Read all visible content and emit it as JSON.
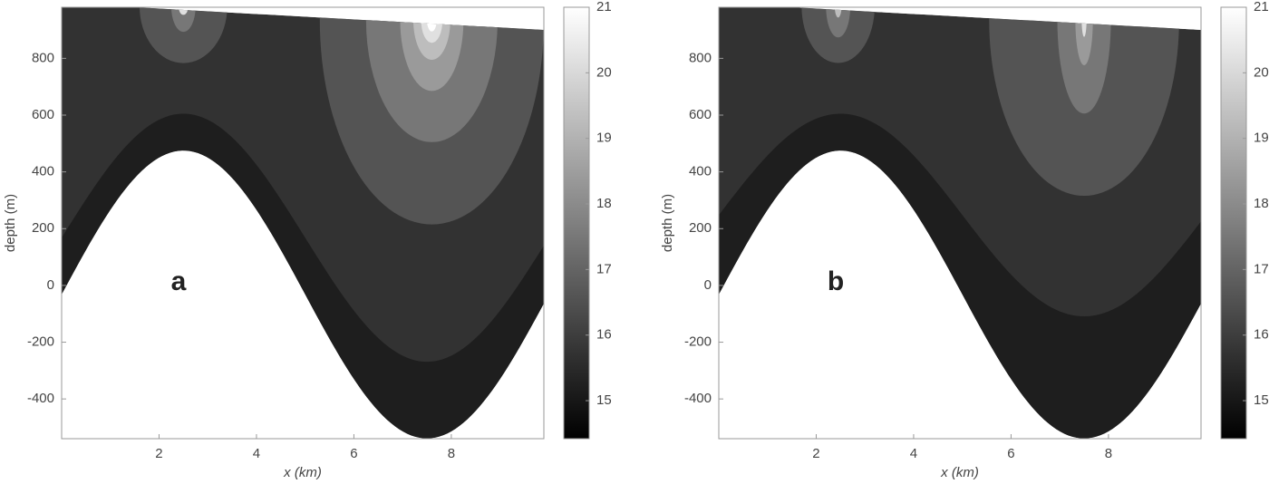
{
  "chart_data": [
    {
      "type": "contour",
      "title": "a",
      "xlabel": "x (km)",
      "ylabel": "depth (m)",
      "xlim": [
        0,
        9.9
      ],
      "ylim": [
        -540,
        980
      ],
      "xticks": [
        2,
        4,
        6,
        8
      ],
      "yticks": [
        -400,
        -200,
        0,
        200,
        400,
        600,
        800
      ],
      "colormap": "gray",
      "clim": [
        14.42,
        21
      ],
      "cticks": [
        15,
        16,
        17,
        18,
        19,
        20,
        21
      ],
      "levels": [
        15.2,
        15.7,
        16.6,
        17.5,
        18.4,
        19.3,
        20.2,
        21
      ]
    },
    {
      "type": "contour",
      "title": "b",
      "xlabel": "x (km)",
      "ylabel": "depth (m)",
      "xlim": [
        0,
        9.9
      ],
      "ylim": [
        -540,
        980
      ],
      "xticks": [
        2,
        4,
        6,
        8
      ],
      "yticks": [
        -400,
        -200,
        0,
        200,
        400,
        600,
        800
      ],
      "colormap": "gray",
      "clim": [
        14.42,
        21
      ],
      "cticks": [
        15,
        16,
        17,
        18,
        19,
        20,
        21
      ],
      "levels": [
        15.2,
        15.7,
        16.6,
        17.5,
        18.4,
        19.3,
        20.2,
        21
      ]
    }
  ]
}
